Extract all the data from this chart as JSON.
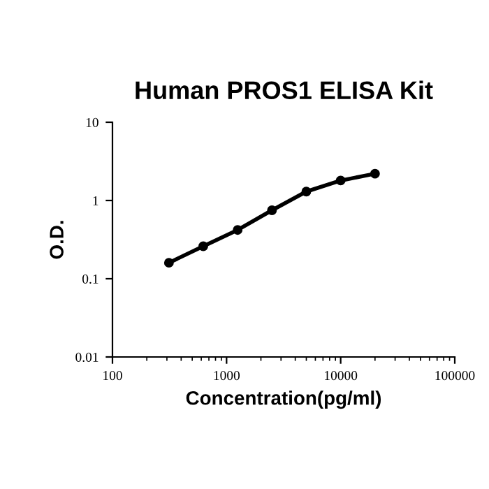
{
  "chart_data": {
    "type": "line",
    "title": "Human PROS1 ELISA Kit",
    "xlabel": "Concentration(pg/ml)",
    "ylabel": "O.D.",
    "log": "xy",
    "x": [
      312.5,
      625,
      1250,
      2500,
      5000,
      10000,
      20000
    ],
    "series": [
      {
        "color": "#000000",
        "values": [
          0.16,
          0.26,
          0.42,
          0.75,
          1.3,
          1.8,
          2.2
        ]
      }
    ],
    "xlim": [
      100,
      100000
    ],
    "xticks": [
      100,
      1000,
      10000,
      100000
    ],
    "ylim": [
      0.01,
      10
    ],
    "yticks": [
      0.01,
      0.1,
      1,
      10
    ],
    "marker": "circle",
    "line_style": "solid",
    "grid": false,
    "legend": false
  }
}
